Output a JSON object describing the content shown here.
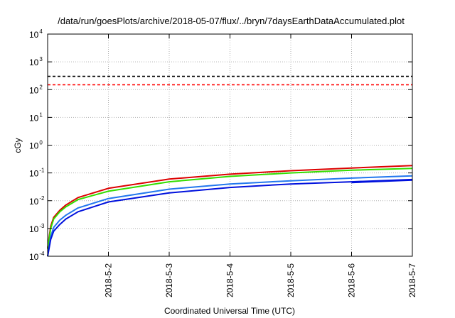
{
  "chart_data": {
    "type": "line",
    "title": "/data/run/goesPlots/archive/2018-05-07/flux/../bryn/7daysEarthDataAccumulated.plot",
    "xlabel": "Coordinated Universal Time (UTC)",
    "ylabel": "cGy",
    "y_scale": "log",
    "ylim": [
      0.0001,
      10000
    ],
    "xlim": [
      "2018-05-01",
      "2018-05-07"
    ],
    "x_ticks": [
      "2018-5-2",
      "2018-5-3",
      "2018-5-4",
      "2018-5-5",
      "2018-5-6",
      "2018-5-7"
    ],
    "y_ticks": [
      {
        "base": "10",
        "exp": "-4",
        "value": 0.0001
      },
      {
        "base": "10",
        "exp": "-3",
        "value": 0.001
      },
      {
        "base": "10",
        "exp": "-2",
        "value": 0.01
      },
      {
        "base": "10",
        "exp": "-1",
        "value": 0.1
      },
      {
        "base": "10",
        "exp": "0",
        "value": 1
      },
      {
        "base": "10",
        "exp": "1",
        "value": 10
      },
      {
        "base": "10",
        "exp": "2",
        "value": 100
      },
      {
        "base": "10",
        "exp": "3",
        "value": 1000
      },
      {
        "base": "10",
        "exp": "4",
        "value": 10000
      }
    ],
    "grid": true,
    "series": [
      {
        "color": "#000000",
        "dash": true,
        "x": [
          "2018-05-01",
          "2018-05-07"
        ],
        "values": [
          300,
          300
        ]
      },
      {
        "color": "#ff0000",
        "dash": true,
        "x": [
          "2018-05-01",
          "2018-05-07"
        ],
        "values": [
          150,
          150
        ]
      },
      {
        "color": "#dd0000",
        "dash": false,
        "x": [
          "2018-05-01 00:00",
          "2018-05-01 01:12",
          "2018-05-01 02:24",
          "2018-05-01 04:48",
          "2018-05-01 07:12",
          "2018-05-01 12:00",
          "2018-05-02 00:00",
          "2018-05-03 00:00",
          "2018-05-04 00:00",
          "2018-05-05 00:00",
          "2018-05-06 00:00",
          "2018-05-07 00:00"
        ],
        "values": [
          0.0002,
          0.0012,
          0.0025,
          0.0045,
          0.007,
          0.013,
          0.028,
          0.06,
          0.09,
          0.12,
          0.15,
          0.185
        ]
      },
      {
        "color": "#33dd00",
        "dash": false,
        "x": [
          "2018-05-01 00:00",
          "2018-05-01 01:12",
          "2018-05-01 02:24",
          "2018-05-01 04:48",
          "2018-05-01 07:12",
          "2018-05-01 12:00",
          "2018-05-02 00:00",
          "2018-05-03 00:00",
          "2018-05-04 00:00",
          "2018-05-05 00:00",
          "2018-05-06 00:00",
          "2018-05-07 00:00"
        ],
        "values": [
          0.00018,
          0.001,
          0.0022,
          0.004,
          0.006,
          0.011,
          0.022,
          0.048,
          0.075,
          0.1,
          0.125,
          0.145
        ]
      },
      {
        "color": "#2277ee",
        "dash": false,
        "x": [
          "2018-05-01 00:00",
          "2018-05-01 01:12",
          "2018-05-01 02:24",
          "2018-05-01 04:48",
          "2018-05-01 07:12",
          "2018-05-01 12:00",
          "2018-05-02 00:00",
          "2018-05-03 00:00",
          "2018-05-04 00:00",
          "2018-05-05 00:00",
          "2018-05-06 00:00",
          "2018-05-07 00:00"
        ],
        "values": [
          0.0001,
          0.0005,
          0.0011,
          0.002,
          0.003,
          0.0055,
          0.012,
          0.026,
          0.04,
          0.052,
          0.065,
          0.078
        ]
      },
      {
        "color": "#0011dd",
        "dash": false,
        "x": [
          "2018-05-01 00:00",
          "2018-05-01 01:12",
          "2018-05-01 02:24",
          "2018-05-01 04:48",
          "2018-05-01 07:12",
          "2018-05-01 12:00",
          "2018-05-02 00:00",
          "2018-05-03 00:00",
          "2018-05-04 00:00",
          "2018-05-05 00:00",
          "2018-05-06 00:00",
          "2018-05-07 00:00"
        ],
        "values": [
          0.0001,
          0.0004,
          0.0008,
          0.0014,
          0.0022,
          0.004,
          0.009,
          0.019,
          0.03,
          0.04,
          0.048,
          0.058
        ]
      },
      {
        "color": "#0011dd",
        "dash": false,
        "x": [
          "2018-05-06 00:00",
          "2018-05-07 00:00"
        ],
        "values": [
          0.045,
          0.055
        ]
      }
    ]
  }
}
